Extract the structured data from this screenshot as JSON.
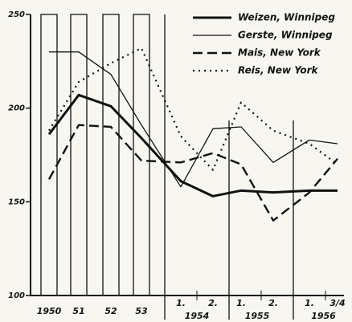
{
  "chart_data": {
    "type": "line",
    "categories": [
      "1950",
      "51",
      "52",
      "53",
      "1.",
      "2.",
      "1.",
      "2.",
      "1.",
      "3/4"
    ],
    "period_groups": [
      "1954",
      "1955",
      "1956"
    ],
    "ylim": [
      100,
      250
    ],
    "yticks": [
      100,
      150,
      200,
      250
    ],
    "legend": "upper right",
    "series": [
      {
        "name": "Weizen, Winnipeg",
        "color": "#111111",
        "width": 3,
        "dash": "none",
        "values": [
          186,
          207,
          201,
          184,
          161,
          153,
          156,
          155,
          156,
          156
        ]
      },
      {
        "name": "Gerste, Winnipeg",
        "color": "#111111",
        "width": 1.3,
        "dash": "none",
        "values": [
          230,
          230,
          218,
          191,
          158,
          189,
          190,
          171,
          183,
          181
        ]
      },
      {
        "name": "Mais, New York",
        "color": "#111111",
        "width": 2.4,
        "dash": "12 6",
        "values": [
          162,
          191,
          190,
          172,
          171,
          176,
          170,
          140,
          155,
          173
        ]
      },
      {
        "name": "Reis, New York",
        "color": "#111111",
        "width": 2.2,
        "dash": "2 5",
        "values": [
          188,
          214,
          224,
          232,
          185,
          167,
          203,
          188,
          181,
          170
        ]
      }
    ]
  }
}
